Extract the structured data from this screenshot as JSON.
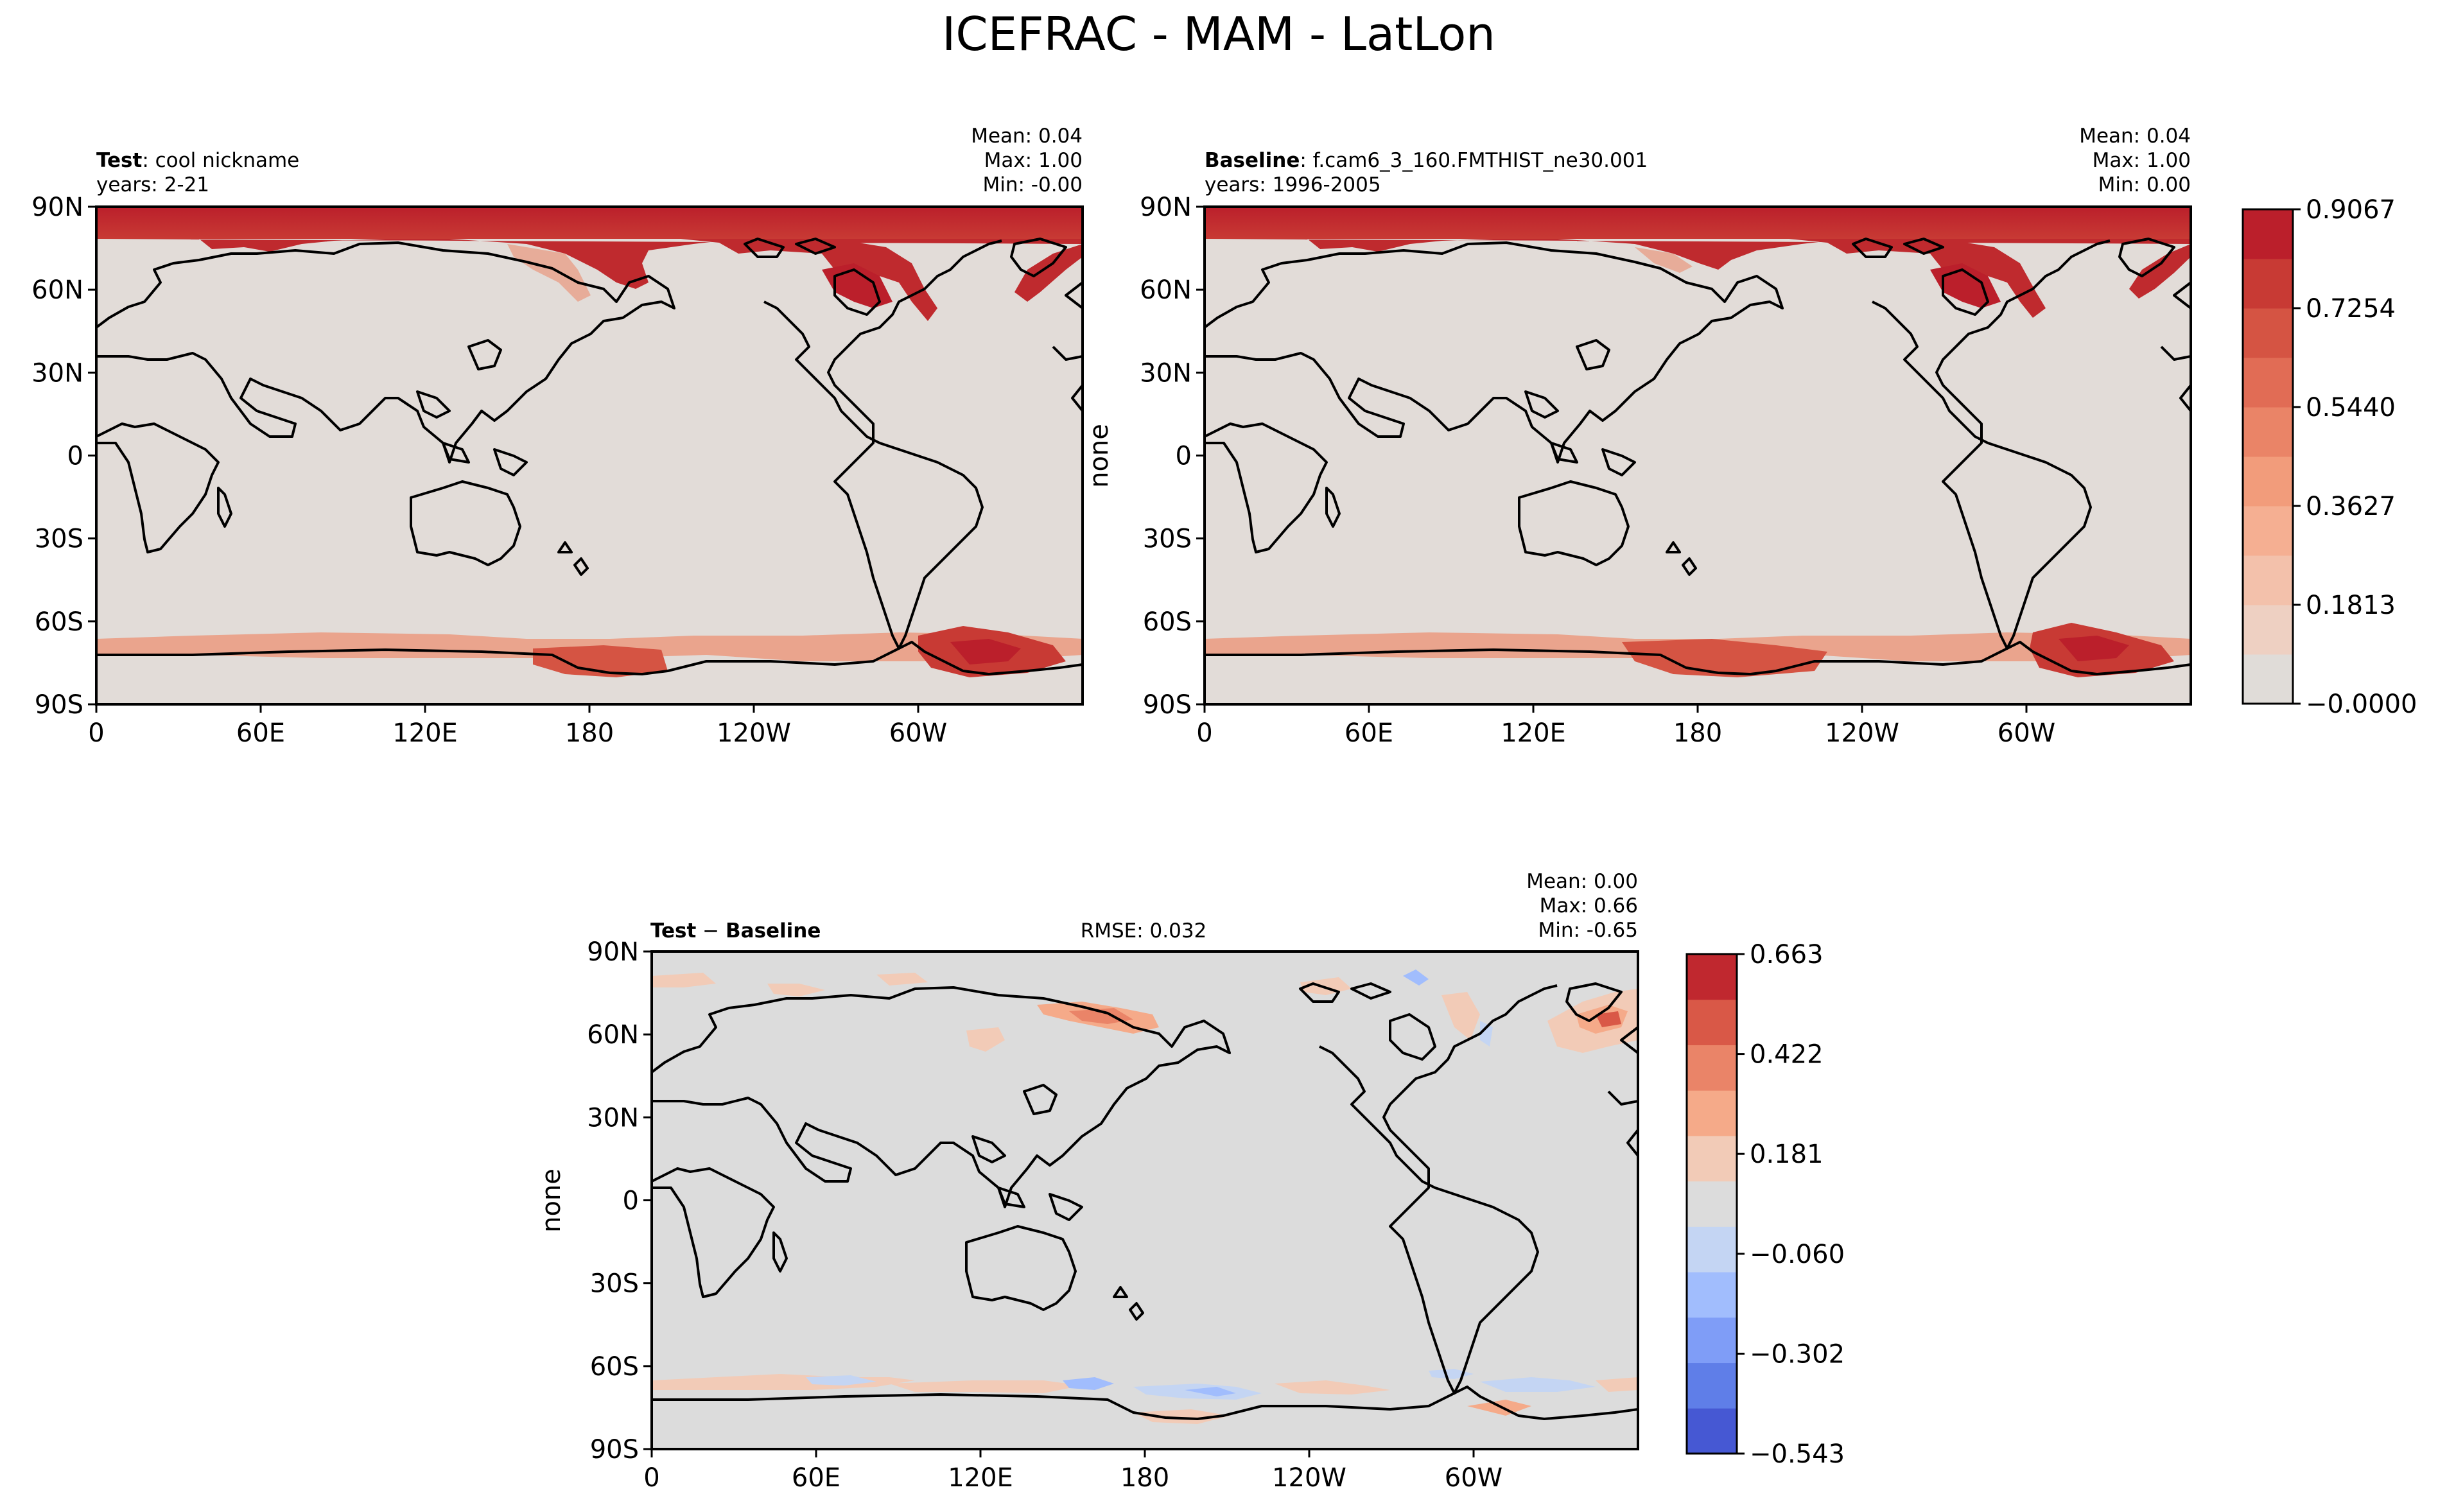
{
  "title": "ICEFRAC - MAM - LatLon",
  "chart_data": [
    {
      "type": "heatmap",
      "panel": "test",
      "header_bold": "Test",
      "header_text": ": cool nickname",
      "years": "years: 2-21",
      "stats": {
        "mean": "Mean:  0.04",
        "max": "Max:  1.00",
        "min": "Min: -0.00"
      },
      "ylabel": "",
      "lon_ticks": [
        "0",
        "60E",
        "120E",
        "180",
        "120W",
        "60W"
      ],
      "lat_ticks": [
        "90N",
        "60N",
        "30N",
        "0",
        "30S",
        "60S",
        "90S"
      ],
      "xlim": [
        0,
        360
      ],
      "ylim": [
        -90,
        90
      ],
      "field_summary": "Sea-ice fraction near 1.0 over Arctic Ocean, Hudson Bay and Greenland coast; partial ice ring around Antarctica (Ross and Weddell Seas); near 0 elsewhere."
    },
    {
      "type": "heatmap",
      "panel": "baseline",
      "header_bold": "Baseline",
      "header_text": ": f.cam6_3_160.FMTHIST_ne30.001",
      "years": "years: 1996-2005",
      "stats": {
        "mean": "Mean:  0.04",
        "max": "Max:  1.00",
        "min": "Min:  0.00"
      },
      "ylabel": "none",
      "lon_ticks": [
        "0",
        "60E",
        "120E",
        "180",
        "120W",
        "60W"
      ],
      "lat_ticks": [
        "90N",
        "60N",
        "30N",
        "0",
        "30S",
        "60S",
        "90S"
      ],
      "xlim": [
        0,
        360
      ],
      "ylim": [
        -90,
        90
      ],
      "colorbar": {
        "ticks": [
          "0.9067",
          "0.7254",
          "0.5440",
          "0.3627",
          "0.1813",
          "−0.0000"
        ],
        "colors": [
          "#e0dcd8",
          "#eed0c2",
          "#f3c1ab",
          "#f5af92",
          "#f29c7b",
          "#ea8467",
          "#e16c55",
          "#d55443",
          "#c83a34",
          "#bb1f2b"
        ]
      }
    },
    {
      "type": "heatmap",
      "panel": "difference",
      "header_bold": "Test",
      "header_sep": " − ",
      "header_bold2": "Baseline",
      "rmse": "RMSE: 0.032",
      "stats": {
        "mean": "Mean:  0.00",
        "max": "Max:  0.66",
        "min": "Min: -0.65"
      },
      "ylabel": "none",
      "lon_ticks": [
        "0",
        "60E",
        "120E",
        "180",
        "120W",
        "60W"
      ],
      "lat_ticks": [
        "90N",
        "60N",
        "30N",
        "0",
        "30S",
        "60S",
        "90S"
      ],
      "xlim": [
        0,
        360
      ],
      "ylim": [
        -90,
        90
      ],
      "colorbar": {
        "ticks": [
          "0.663",
          "0.422",
          "0.181",
          "−0.060",
          "−0.302",
          "−0.543"
        ],
        "colors": [
          "#4658d3",
          "#5f7ee8",
          "#7f9df7",
          "#a1bdfd",
          "#c4d5f3",
          "#dcdcdc",
          "#f2cbb7",
          "#f5aa89",
          "#ea8468",
          "#d95847",
          "#c0282f"
        ]
      }
    }
  ]
}
